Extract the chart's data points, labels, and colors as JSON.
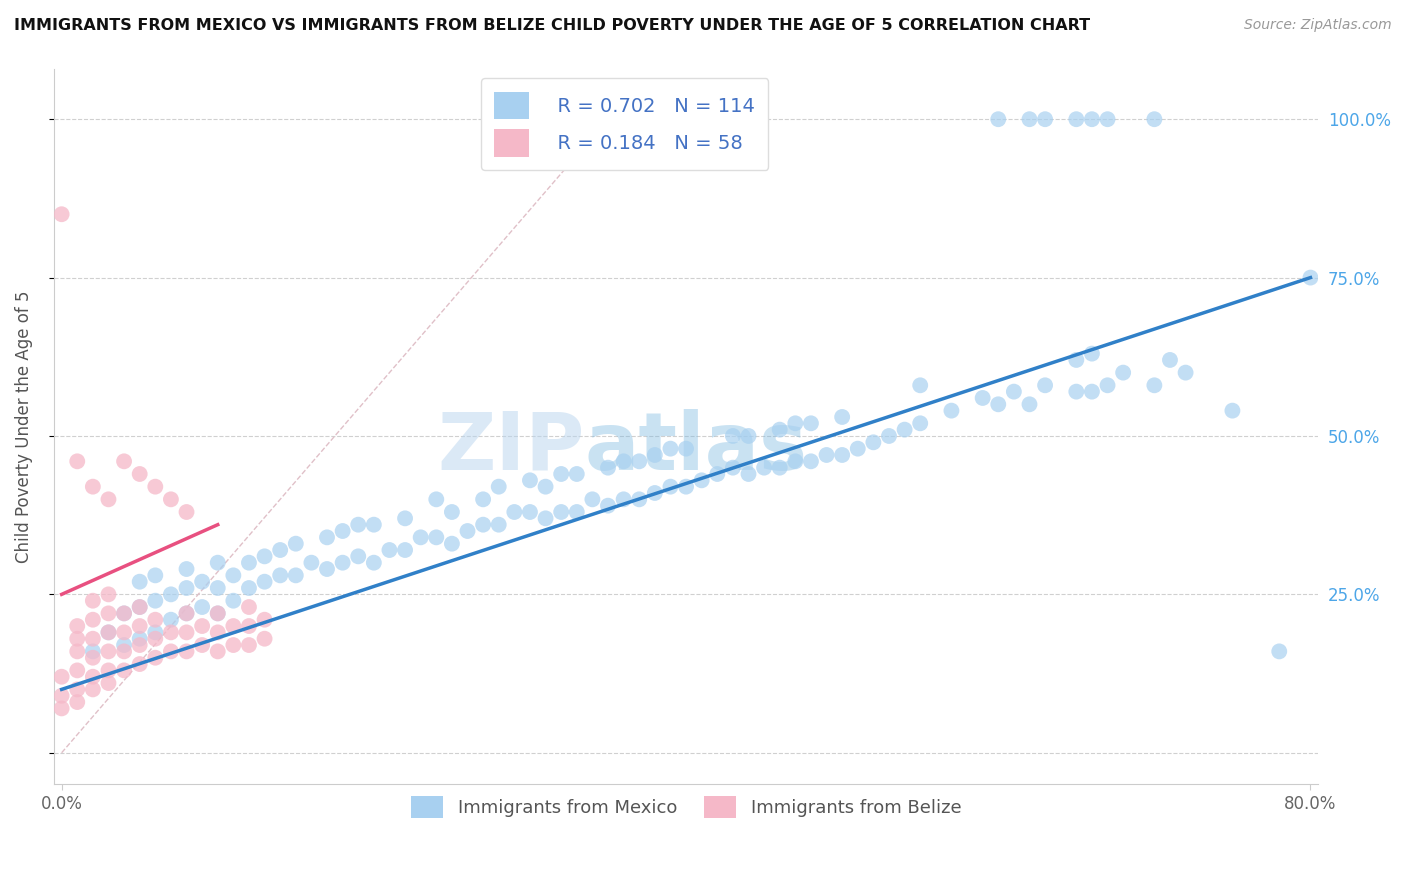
{
  "title": "IMMIGRANTS FROM MEXICO VS IMMIGRANTS FROM BELIZE CHILD POVERTY UNDER THE AGE OF 5 CORRELATION CHART",
  "source": "Source: ZipAtlas.com",
  "ylabel": "Child Poverty Under the Age of 5",
  "xlim": [
    -0.005,
    0.805
  ],
  "ylim": [
    -0.05,
    1.08
  ],
  "y_ticks": [
    0.0,
    0.25,
    0.5,
    0.75,
    1.0
  ],
  "y_tick_labels": [
    "",
    "25.0%",
    "50.0%",
    "75.0%",
    "100.0%"
  ],
  "x_tick_labels": [
    "0.0%",
    "80.0%"
  ],
  "x_ticks": [
    0.0,
    0.8
  ],
  "R_mexico": 0.702,
  "N_mexico": 114,
  "R_belize": 0.184,
  "N_belize": 58,
  "color_mexico": "#a8d0f0",
  "color_belize": "#f5b8c8",
  "line_color_mexico": "#3080c8",
  "line_color_belize": "#e85080",
  "diagonal_color": "#e0c0c8",
  "watermark": "ZIPAtlas",
  "mexico_x": [
    0.02,
    0.03,
    0.04,
    0.04,
    0.05,
    0.05,
    0.05,
    0.06,
    0.06,
    0.06,
    0.07,
    0.07,
    0.08,
    0.08,
    0.08,
    0.09,
    0.09,
    0.1,
    0.1,
    0.1,
    0.11,
    0.11,
    0.12,
    0.12,
    0.13,
    0.13,
    0.14,
    0.14,
    0.15,
    0.15,
    0.16,
    0.17,
    0.17,
    0.18,
    0.18,
    0.19,
    0.19,
    0.2,
    0.2,
    0.21,
    0.22,
    0.22,
    0.23,
    0.24,
    0.24,
    0.25,
    0.25,
    0.26,
    0.27,
    0.27,
    0.28,
    0.28,
    0.29,
    0.3,
    0.3,
    0.31,
    0.31,
    0.32,
    0.32,
    0.33,
    0.33,
    0.34,
    0.35,
    0.35,
    0.36,
    0.36,
    0.37,
    0.37,
    0.38,
    0.38,
    0.39,
    0.39,
    0.4,
    0.4,
    0.41,
    0.42,
    0.43,
    0.43,
    0.44,
    0.44,
    0.45,
    0.46,
    0.46,
    0.47,
    0.47,
    0.48,
    0.48,
    0.49,
    0.5,
    0.5,
    0.51,
    0.52,
    0.53,
    0.54,
    0.55,
    0.55,
    0.57,
    0.59,
    0.6,
    0.61,
    0.62,
    0.63,
    0.65,
    0.65,
    0.66,
    0.66,
    0.67,
    0.68,
    0.7,
    0.71,
    0.72,
    0.75,
    0.78,
    0.8
  ],
  "mexico_y": [
    0.16,
    0.19,
    0.17,
    0.22,
    0.18,
    0.23,
    0.27,
    0.19,
    0.24,
    0.28,
    0.21,
    0.25,
    0.22,
    0.26,
    0.29,
    0.23,
    0.27,
    0.22,
    0.26,
    0.3,
    0.24,
    0.28,
    0.26,
    0.3,
    0.27,
    0.31,
    0.28,
    0.32,
    0.28,
    0.33,
    0.3,
    0.29,
    0.34,
    0.3,
    0.35,
    0.31,
    0.36,
    0.3,
    0.36,
    0.32,
    0.32,
    0.37,
    0.34,
    0.34,
    0.4,
    0.33,
    0.38,
    0.35,
    0.36,
    0.4,
    0.36,
    0.42,
    0.38,
    0.38,
    0.43,
    0.37,
    0.42,
    0.38,
    0.44,
    0.38,
    0.44,
    0.4,
    0.39,
    0.45,
    0.4,
    0.46,
    0.4,
    0.46,
    0.41,
    0.47,
    0.42,
    0.48,
    0.42,
    0.48,
    0.43,
    0.44,
    0.45,
    0.5,
    0.44,
    0.5,
    0.45,
    0.45,
    0.51,
    0.46,
    0.52,
    0.46,
    0.52,
    0.47,
    0.47,
    0.53,
    0.48,
    0.49,
    0.5,
    0.51,
    0.52,
    0.58,
    0.54,
    0.56,
    0.55,
    0.57,
    0.55,
    0.58,
    0.57,
    0.62,
    0.57,
    0.63,
    0.58,
    0.6,
    0.58,
    0.62,
    0.6,
    0.54,
    0.16,
    0.75
  ],
  "mexico_top_x": [
    0.6,
    0.62,
    0.63,
    0.65,
    0.66,
    0.67,
    0.7
  ],
  "mexico_top_y": [
    1.0,
    1.0,
    1.0,
    1.0,
    1.0,
    1.0,
    1.0
  ],
  "belize_x": [
    0.0,
    0.0,
    0.0,
    0.01,
    0.01,
    0.01,
    0.01,
    0.01,
    0.01,
    0.02,
    0.02,
    0.02,
    0.02,
    0.02,
    0.02,
    0.03,
    0.03,
    0.03,
    0.03,
    0.03,
    0.03,
    0.04,
    0.04,
    0.04,
    0.04,
    0.05,
    0.05,
    0.05,
    0.05,
    0.06,
    0.06,
    0.06,
    0.07,
    0.07,
    0.08,
    0.08,
    0.08,
    0.09,
    0.09,
    0.1,
    0.1,
    0.1,
    0.11,
    0.11,
    0.12,
    0.12,
    0.12,
    0.13,
    0.13,
    0.0,
    0.01,
    0.02,
    0.03,
    0.04,
    0.05,
    0.06,
    0.07,
    0.08
  ],
  "belize_y": [
    0.07,
    0.09,
    0.12,
    0.08,
    0.1,
    0.13,
    0.16,
    0.18,
    0.2,
    0.1,
    0.12,
    0.15,
    0.18,
    0.21,
    0.24,
    0.11,
    0.13,
    0.16,
    0.19,
    0.22,
    0.25,
    0.13,
    0.16,
    0.19,
    0.22,
    0.14,
    0.17,
    0.2,
    0.23,
    0.15,
    0.18,
    0.21,
    0.16,
    0.19,
    0.16,
    0.19,
    0.22,
    0.17,
    0.2,
    0.16,
    0.19,
    0.22,
    0.17,
    0.2,
    0.17,
    0.2,
    0.23,
    0.18,
    0.21,
    0.85,
    0.46,
    0.42,
    0.4,
    0.46,
    0.44,
    0.42,
    0.4,
    0.38
  ],
  "mx_line_x": [
    0.0,
    0.8
  ],
  "mx_line_y": [
    0.1,
    0.75
  ],
  "bl_line_x": [
    0.0,
    0.1
  ],
  "bl_line_y": [
    0.25,
    0.36
  ],
  "diag_line_x": [
    0.0,
    0.35
  ],
  "diag_line_y": [
    0.0,
    1.0
  ]
}
